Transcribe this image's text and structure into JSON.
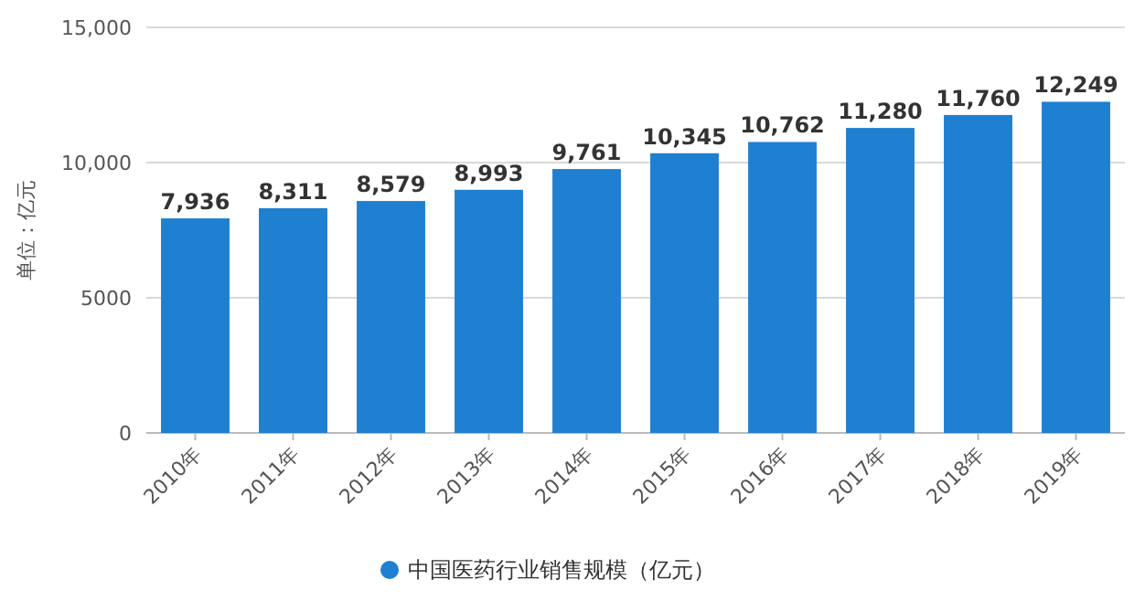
{
  "chart_data": {
    "type": "bar",
    "ylabel": "单位：亿元",
    "categories": [
      "2010年",
      "2011年",
      "2012年",
      "2013年",
      "2014年",
      "2015年",
      "2016年",
      "2017年",
      "2018年",
      "2019年"
    ],
    "series": [
      {
        "name": "中国医药行业销售规模（亿元）",
        "color": "#1f7fd0",
        "values": [
          7936,
          8311,
          8579,
          8993,
          9761,
          10345,
          10762,
          11280,
          11760,
          12249
        ],
        "value_labels": [
          "7,936",
          "8,311",
          "8,579",
          "8,993",
          "9,761",
          "10,345",
          "10,762",
          "11,280",
          "11,760",
          "12,249"
        ]
      }
    ],
    "ylim": [
      0,
      15000
    ],
    "yticks": [
      0,
      5000,
      {
        "value": 10000,
        "label": "10,000"
      },
      {
        "value": 15000,
        "label": "15,000"
      }
    ],
    "grid": "y",
    "legend": "bottom"
  }
}
